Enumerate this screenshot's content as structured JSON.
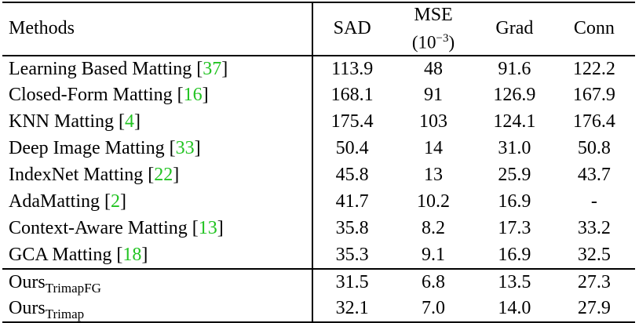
{
  "header": {
    "methods": "Methods",
    "sad": "SAD",
    "mse": "MSE",
    "mse_unit_base": "(10",
    "mse_unit_exp": "−3",
    "mse_unit_close": ")",
    "grad": "Grad",
    "conn": "Conn"
  },
  "rows": [
    {
      "method": "Learning Based Matting [",
      "ref": "37",
      "close": "]",
      "sad": "113.9",
      "mse": "48",
      "grad": "91.6",
      "conn": "122.2"
    },
    {
      "method": "Closed-Form Matting [",
      "ref": "16",
      "close": "]",
      "sad": "168.1",
      "mse": "91",
      "grad": "126.9",
      "conn": "167.9"
    },
    {
      "method": "KNN Matting [",
      "ref": "4",
      "close": "]",
      "sad": "175.4",
      "mse": "103",
      "grad": "124.1",
      "conn": "176.4"
    },
    {
      "method": "Deep Image Matting [",
      "ref": "33",
      "close": "]",
      "sad": "50.4",
      "mse": "14",
      "grad": "31.0",
      "conn": "50.8"
    },
    {
      "method": "IndexNet Matting [",
      "ref": "22",
      "close": "]",
      "sad": "45.8",
      "mse": "13",
      "grad": "25.9",
      "conn": "43.7"
    },
    {
      "method": "AdaMatting [",
      "ref": "2",
      "close": "]",
      "sad": "41.7",
      "mse": "10.2",
      "grad": "16.9",
      "conn": "-"
    },
    {
      "method": "Context-Aware Matting [",
      "ref": "13",
      "close": "]",
      "sad": "35.8",
      "mse": "8.2",
      "grad": "17.3",
      "conn": "33.2"
    },
    {
      "method": "GCA Matting [",
      "ref": "18",
      "close": "]",
      "sad": "35.3",
      "mse": "9.1",
      "grad": "16.9",
      "conn": "32.5"
    }
  ],
  "ours": [
    {
      "method": "Ours",
      "subscript": "TrimapFG",
      "sad": "31.5",
      "mse": "6.8",
      "grad": "13.5",
      "conn": "27.3",
      "bold": true
    },
    {
      "method": "Ours",
      "subscript": "Trimap",
      "sad": "32.1",
      "mse": "7.0",
      "grad": "14.0",
      "conn": "27.9",
      "bold": false
    }
  ],
  "colors": {
    "reference_link": "#22c322",
    "text": "#000000",
    "background": "#ffffff"
  }
}
